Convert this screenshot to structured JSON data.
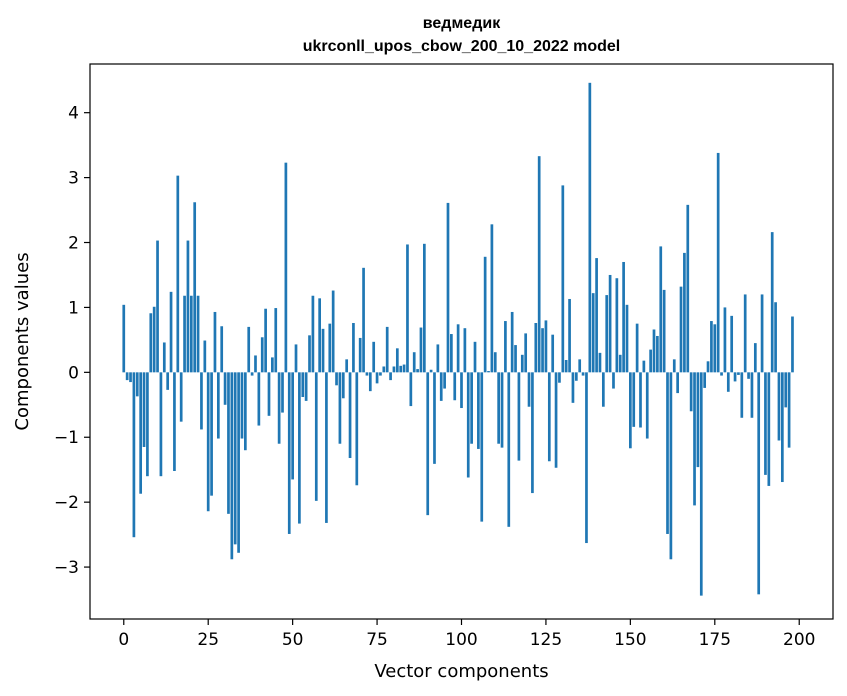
{
  "chart_data": {
    "type": "bar",
    "title": "ведмедик",
    "subtitle": "ukrconll_upos_cbow_200_10_2022 model",
    "xlabel": "Vector components",
    "ylabel": "Components values",
    "xlim": [
      -10,
      210
    ],
    "ylim": [
      -3.8,
      4.75
    ],
    "xticks": [
      0,
      25,
      50,
      75,
      100,
      125,
      150,
      175,
      200
    ],
    "yticks": [
      -3,
      -2,
      -1,
      0,
      1,
      2,
      3,
      4
    ],
    "ytick_labels": [
      "−3",
      "−2",
      "−1",
      "0",
      "1",
      "2",
      "3",
      "4"
    ],
    "bar_color": "#1f77b4",
    "values": [
      1.04,
      -0.12,
      -0.15,
      -2.54,
      -0.37,
      -1.87,
      -1.15,
      -1.6,
      0.91,
      1.01,
      2.03,
      -1.6,
      0.46,
      -0.27,
      1.24,
      -1.52,
      3.03,
      -0.76,
      1.18,
      2.03,
      1.18,
      2.62,
      1.18,
      -0.88,
      0.49,
      -2.14,
      -1.9,
      0.93,
      -1.02,
      0.71,
      -0.5,
      -2.18,
      -2.88,
      -2.65,
      -2.78,
      -1.02,
      -1.2,
      0.7,
      -0.05,
      0.26,
      -0.82,
      0.54,
      0.98,
      -0.67,
      0.23,
      0.99,
      -1.1,
      -0.62,
      3.23,
      -2.49,
      -1.65,
      0.43,
      -2.33,
      -0.38,
      -0.44,
      0.57,
      1.18,
      -1.98,
      1.14,
      0.67,
      -2.32,
      0.75,
      1.26,
      -0.2,
      -1.1,
      -0.4,
      0.2,
      -1.32,
      0.76,
      -1.74,
      0.53,
      1.61,
      -0.05,
      -0.29,
      0.47,
      -0.17,
      -0.05,
      0.09,
      0.7,
      -0.12,
      0.09,
      0.37,
      0.1,
      0.12,
      1.97,
      -0.52,
      0.31,
      0.05,
      0.69,
      1.98,
      -2.2,
      0.04,
      -1.41,
      0.43,
      -0.44,
      -0.25,
      2.61,
      0.59,
      -0.43,
      0.74,
      -0.55,
      0.68,
      -1.62,
      -1.1,
      0.47,
      -1.18,
      -2.3,
      1.78,
      0.02,
      2.28,
      0.31,
      -1.1,
      -1.16,
      0.79,
      -2.38,
      0.93,
      0.42,
      -1.36,
      0.27,
      0.6,
      -0.53,
      -1.86,
      0.76,
      3.33,
      0.68,
      0.8,
      -1.37,
      0.58,
      -1.47,
      -0.16,
      2.88,
      0.19,
      1.13,
      -0.47,
      -0.13,
      0.2,
      -0.05,
      -2.63,
      4.46,
      1.22,
      1.76,
      0.3,
      -0.53,
      1.19,
      1.5,
      -0.25,
      1.45,
      0.27,
      1.7,
      1.04,
      -1.17,
      -0.84,
      0.75,
      -0.85,
      0.18,
      -1.02,
      0.35,
      0.66,
      0.56,
      1.94,
      1.27,
      -2.49,
      -2.88,
      0.2,
      -0.32,
      1.32,
      1.84,
      2.58,
      -0.6,
      -2.05,
      -1.46,
      -3.44,
      -0.24,
      0.17,
      0.79,
      0.74,
      3.38,
      -0.05,
      1.0,
      -0.3,
      0.87,
      -0.14,
      -0.04,
      -0.7,
      1.2,
      -0.1,
      -0.7,
      0.45,
      -3.42,
      1.2,
      -1.58,
      -1.75,
      2.16,
      1.08,
      -1.05,
      -1.69,
      -0.54,
      -1.16,
      0.86
    ]
  }
}
